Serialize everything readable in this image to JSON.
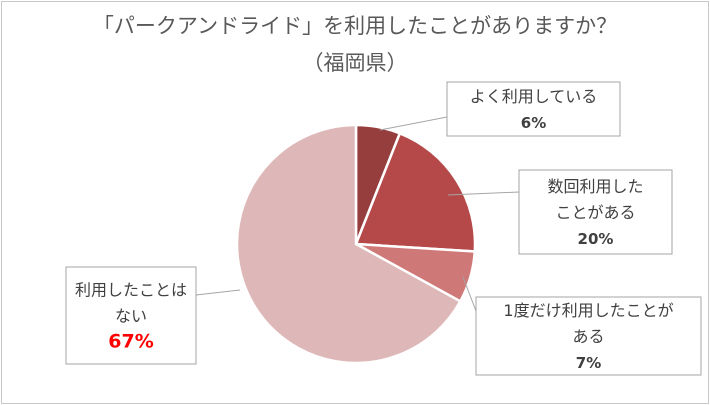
{
  "chart_data": {
    "type": "pie",
    "title": "「パークアンドライド」を利用したことがありますか？",
    "subtitle": "（福岡県）",
    "slices": [
      {
        "label_lines": [
          "よく利用している"
        ],
        "value": 6,
        "value_label": "6%",
        "color": "#963d3d"
      },
      {
        "label_lines": [
          "数回利用した",
          "ことがある"
        ],
        "value": 20,
        "value_label": "20%",
        "color": "#b54848"
      },
      {
        "label_lines": [
          "1度だけ利用したことが",
          "ある"
        ],
        "value": 7,
        "value_label": "7%",
        "color": "#cf7878"
      },
      {
        "label_lines": [
          "利用したことは",
          "ない"
        ],
        "value": 67,
        "value_label": "67%",
        "color": "#deb8b8",
        "value_color": "#ff0000"
      }
    ]
  }
}
